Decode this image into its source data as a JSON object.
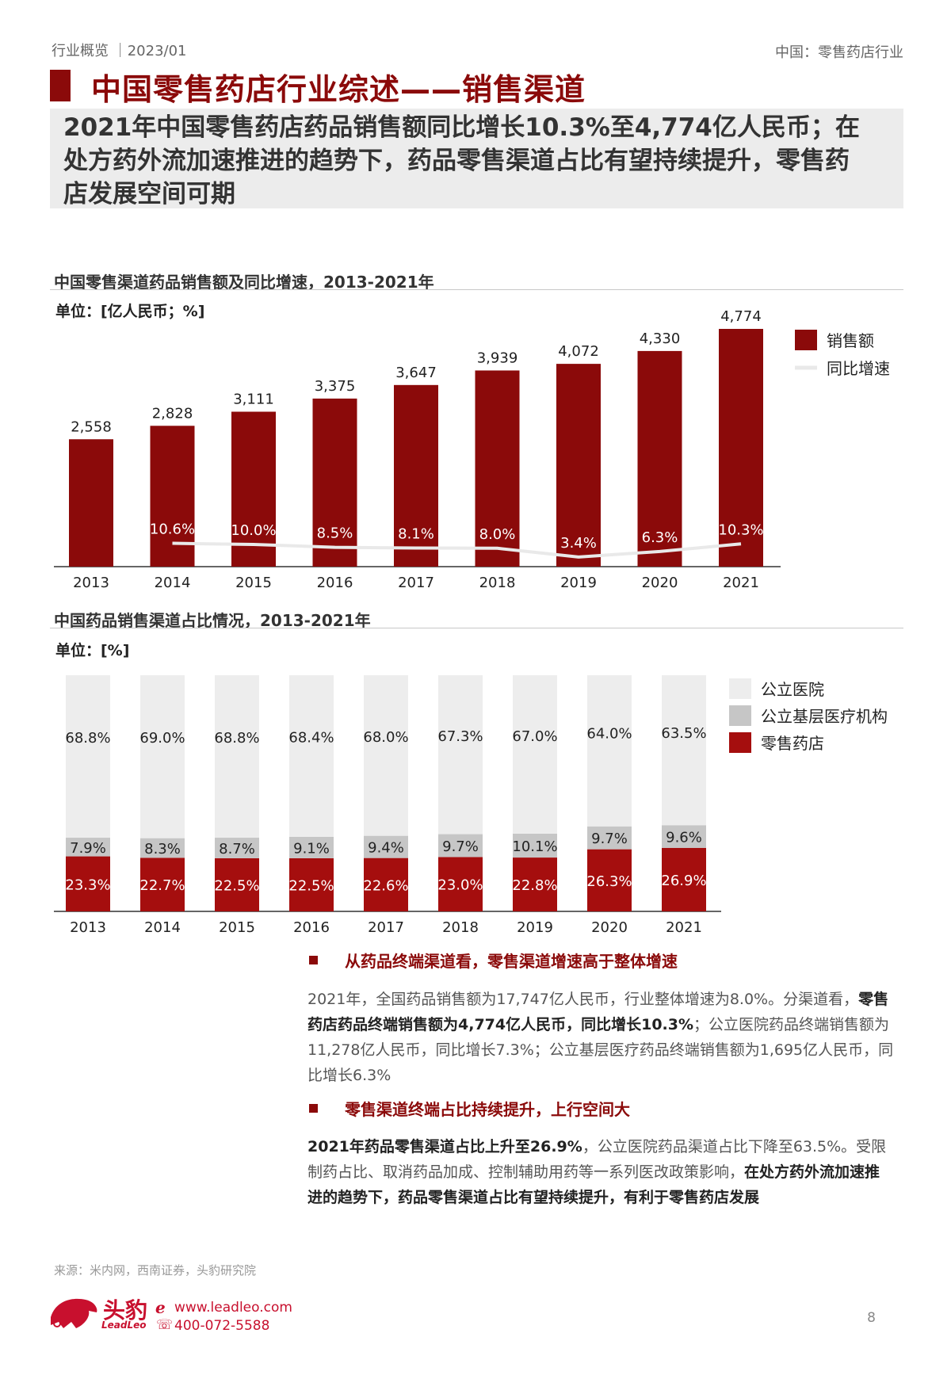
{
  "header": {
    "left": "行业概览 ｜2023/01",
    "right": "中国：零售药店行业"
  },
  "title": "中国零售药店行业综述——销售渠道",
  "summary": "2021年中国零售药店药品销售额同比增长10.3%至4,774亿人民币；在处方药外流加速推进的趋势下，药品零售渠道占比有望持续提升，零售药店发展空间可期",
  "colors": {
    "brand": "#8B0A0A",
    "hospital": "#ededed",
    "grassroots": "#c6c6c6",
    "retail": "#A50E0E",
    "growth_line": "#e9e9e9"
  },
  "chart1": {
    "title": "中国零售渠道药品销售额及同比增速，2013-2021年",
    "unit": "单位：[亿人民币；%]"
  },
  "chart2": {
    "title": "中国药品销售渠道占比情况，2013-2021年",
    "unit": "单位：[%]"
  },
  "chart_data": [
    {
      "type": "bar",
      "title": "中国零售渠道药品销售额及同比增速，2013-2021年",
      "categories": [
        "2013",
        "2014",
        "2015",
        "2016",
        "2017",
        "2018",
        "2019",
        "2020",
        "2021"
      ],
      "series": [
        {
          "name": "销售额",
          "values": [
            2558,
            2828,
            3111,
            3375,
            3647,
            3939,
            4072,
            4330,
            4774
          ],
          "labels": [
            "2,558",
            "2,828",
            "3,111",
            "3,375",
            "3,647",
            "3,939",
            "4,072",
            "4,330",
            "4,774"
          ]
        },
        {
          "name": "同比增速",
          "type": "line",
          "values": [
            null,
            10.6,
            10.0,
            8.5,
            8.1,
            8.0,
            3.4,
            6.3,
            10.3
          ],
          "labels": [
            "",
            "10.6%",
            "10.0%",
            "8.5%",
            "8.1%",
            "8.0%",
            "3.4%",
            "6.3%",
            "10.3%"
          ]
        }
      ],
      "legend": "right"
    },
    {
      "type": "bar",
      "stacked": true,
      "title": "中国药品销售渠道占比情况，2013-2021年",
      "categories": [
        "2013",
        "2014",
        "2015",
        "2016",
        "2017",
        "2018",
        "2019",
        "2020",
        "2021"
      ],
      "series": [
        {
          "name": "零售药店",
          "values": [
            23.3,
            22.7,
            22.5,
            22.5,
            22.6,
            23.0,
            22.8,
            26.3,
            26.9
          ],
          "labels": [
            "23.3%",
            "22.7%",
            "22.5%",
            "22.5%",
            "22.6%",
            "23.0%",
            "22.8%",
            "26.3%",
            "26.9%"
          ]
        },
        {
          "name": "公立基层医疗机构",
          "values": [
            7.9,
            8.3,
            8.7,
            9.1,
            9.4,
            9.7,
            10.1,
            9.7,
            9.6
          ],
          "labels": [
            "7.9%",
            "8.3%",
            "8.7%",
            "9.1%",
            "9.4%",
            "9.7%",
            "10.1%",
            "9.7%",
            "9.6%"
          ]
        },
        {
          "name": "公立医院",
          "values": [
            68.8,
            69.0,
            68.8,
            68.4,
            68.0,
            67.3,
            67.0,
            64.0,
            63.5
          ],
          "labels": [
            "68.8%",
            "69.0%",
            "68.8%",
            "68.4%",
            "68.0%",
            "67.3%",
            "67.0%",
            "64.0%",
            "63.5%"
          ]
        }
      ],
      "legend_order": [
        "公立医院",
        "公立基层医疗机构",
        "零售药店"
      ],
      "legend": "right"
    }
  ],
  "bullets": [
    {
      "heading": "从药品终端渠道看，零售渠道增速高于整体增速",
      "segments": [
        {
          "text": "2021年，全国药品销售额为17,747亿人民币，行业整体增速为8.0%。分渠道看，",
          "bold": false
        },
        {
          "text": "零售药店药品终端销售额为4,774亿人民币，同比增长10.3%",
          "bold": true
        },
        {
          "text": "；公立医院药品终端销售额为11,278亿人民币，同比增长7.3%；公立基层医疗药品终端销售额为1,695亿人民币，同比增长6.3%",
          "bold": false
        }
      ]
    },
    {
      "heading": "零售渠道终端占比持续提升，上行空间大",
      "segments": [
        {
          "text": "2021年药品零售渠道占比上升至26.9%",
          "bold": true
        },
        {
          "text": "，公立医院药品渠道占比下降至63.5%。受限制药占比、取消药品加成、控制辅助用药等一系列医改政策影响，",
          "bold": false
        },
        {
          "text": "在处方药外流加速推进的趋势下，药品零售渠道占比有望持续提升，有利于零售药店发展",
          "bold": true
        }
      ]
    }
  ],
  "footer": {
    "source": "来源：米内网，西南证券，头豹研究院",
    "logo": "头豹",
    "logo_sub": "LeadLeo",
    "website": "www.leadleo.com",
    "phone": "400-072-5588",
    "page": "8"
  }
}
